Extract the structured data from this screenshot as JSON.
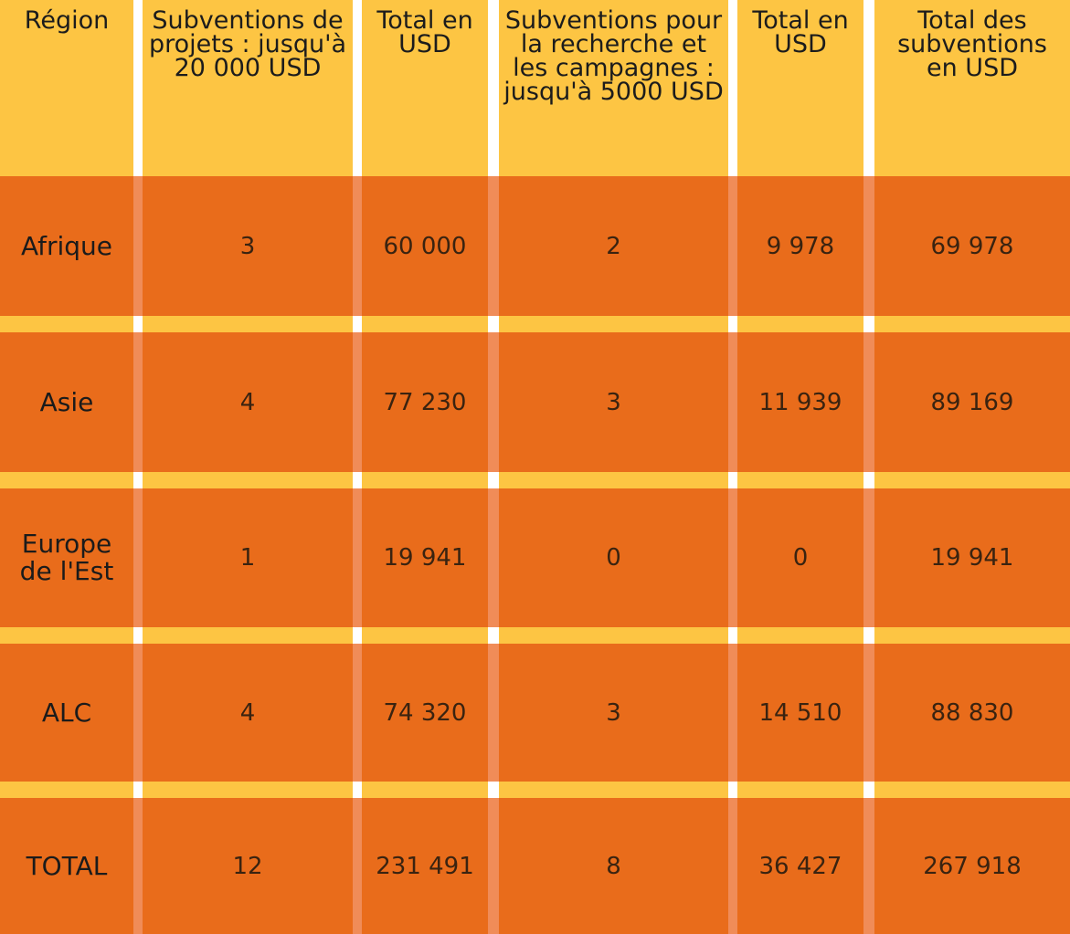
{
  "colors": {
    "header_bg": "#fdc543",
    "row_bg": "#e96c1b",
    "gap_bg": "#fdc543",
    "separator": "#ffffff"
  },
  "headers": [
    "Région",
    "Subventions de projets : jusqu'à 20 000 USD",
    "Total en USD",
    "Subventions pour la recherche et les campagnes : jusqu'à 5000 USD",
    "Total en USD",
    "Total des subventions en USD"
  ],
  "rows": [
    {
      "region": "Afrique",
      "project_grants": "3",
      "project_total": "60 000",
      "research_grants": "2",
      "research_total": "9 978",
      "grand_total": "69 978"
    },
    {
      "region": "Asie",
      "project_grants": "4",
      "project_total": "77 230",
      "research_grants": "3",
      "research_total": "11 939",
      "grand_total": "89 169"
    },
    {
      "region": "Europe de l'Est",
      "project_grants": "1",
      "project_total": "19 941",
      "research_grants": "0",
      "research_total": "0",
      "grand_total": "19 941"
    },
    {
      "region": "ALC",
      "project_grants": "4",
      "project_total": "74 320",
      "research_grants": "3",
      "research_total": "14 510",
      "grand_total": "88 830"
    },
    {
      "region": "TOTAL",
      "project_grants": "12",
      "project_total": "231 491",
      "research_grants": "8",
      "research_total": "36 427",
      "grand_total": "267 918"
    }
  ]
}
